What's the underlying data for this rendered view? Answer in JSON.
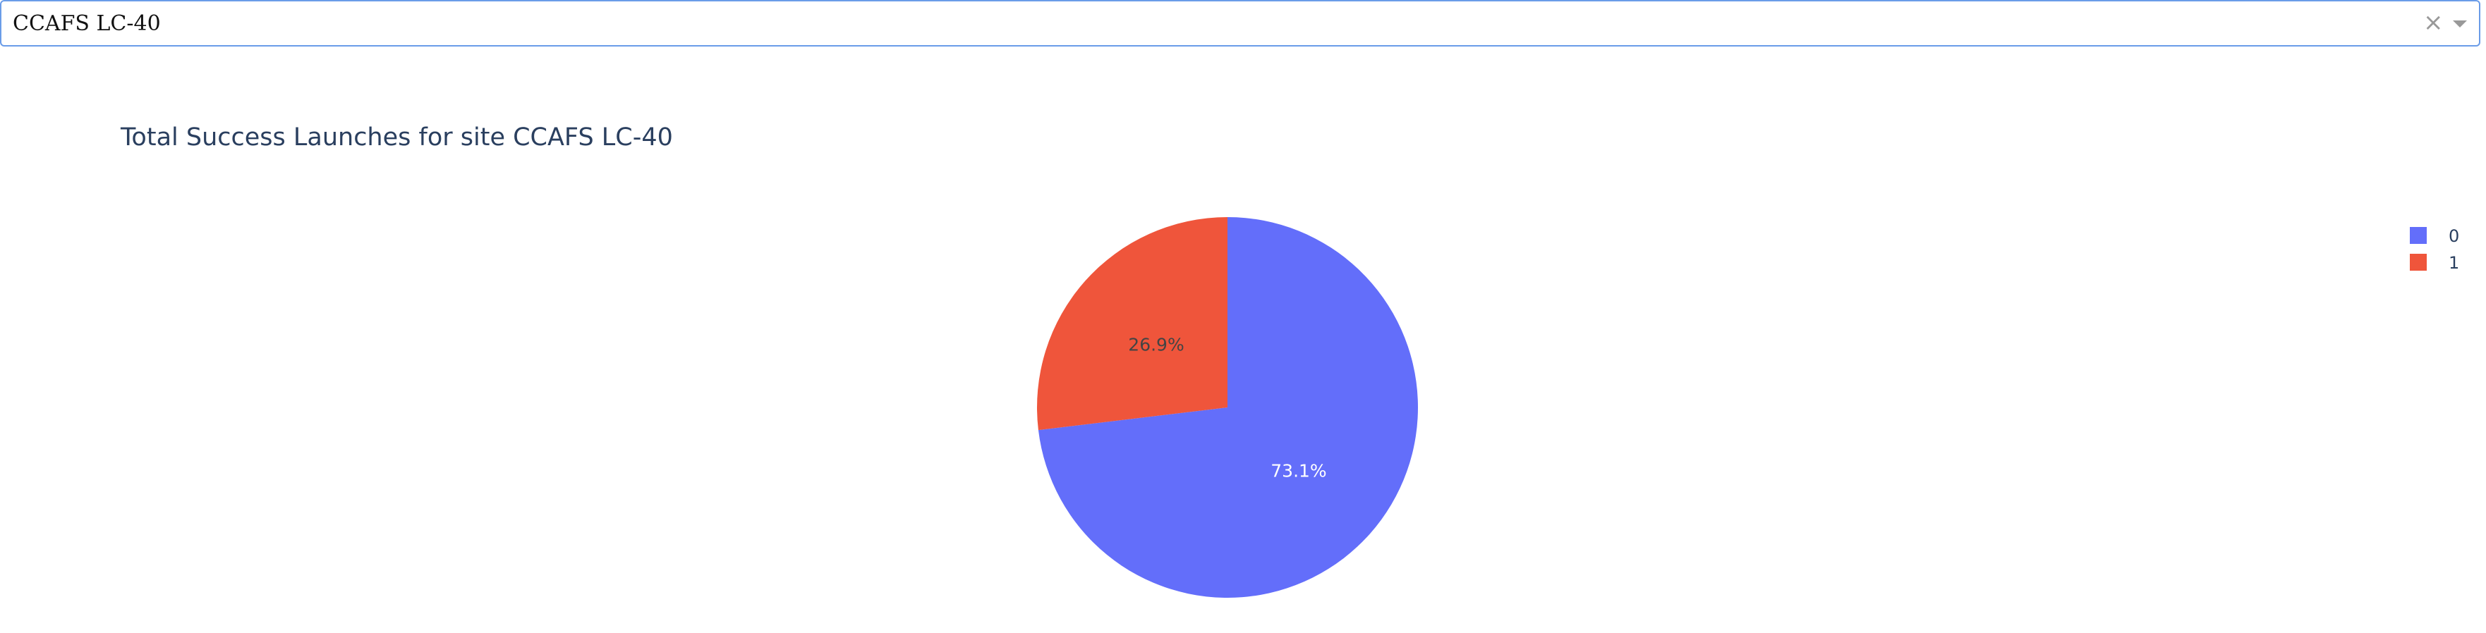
{
  "dropdown": {
    "selected": "CCAFS LC-40",
    "clear_icon": "close-icon",
    "arrow_icon": "chevron-down-icon"
  },
  "chart_data": {
    "type": "pie",
    "title": "Total Success Launches for site CCAFS LC-40",
    "slices": [
      {
        "label": "0",
        "value": 73.1,
        "text": "73.1%",
        "color": "#636efa"
      },
      {
        "label": "1",
        "value": 26.9,
        "text": "26.9%",
        "color": "#ef553b"
      }
    ],
    "legend_position": "top-right",
    "colors": {
      "title": "#2a3f5f",
      "legend_text": "#2a3f5f",
      "label_on_blue": "#ffffff",
      "label_on_red": "#444444"
    }
  }
}
